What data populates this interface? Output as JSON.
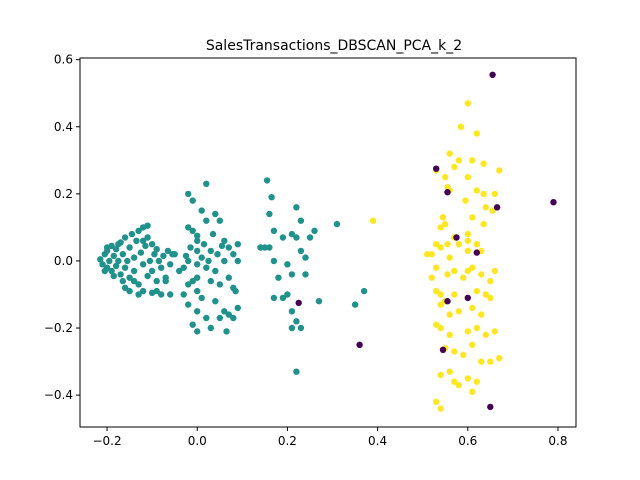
{
  "chart_data": {
    "type": "scatter",
    "title": "SalesTransactions_DBSCAN_PCA_k_2",
    "xlabel": "",
    "ylabel": "",
    "xlim": [
      -0.26,
      0.84
    ],
    "ylim": [
      -0.495,
      0.605
    ],
    "grid": false,
    "xticks": [
      -0.2,
      0.0,
      0.2,
      0.4,
      0.6,
      0.8
    ],
    "xtick_labels": [
      "−0.2",
      "0.0",
      "0.2",
      "0.4",
      "0.6",
      "0.8"
    ],
    "yticks": [
      -0.4,
      -0.2,
      0.0,
      0.2,
      0.4,
      0.6
    ],
    "ytick_labels": [
      "−0.4",
      "−0.2",
      "0.0",
      "0.2",
      "0.4",
      "0.6"
    ],
    "series": [
      {
        "color": "#21918c",
        "points": [
          [
            -0.215,
            0.005
          ],
          [
            -0.21,
            -0.01
          ],
          [
            -0.205,
            0.02
          ],
          [
            -0.2,
            0.03
          ],
          [
            -0.2,
            -0.02
          ],
          [
            -0.195,
            0.0
          ],
          [
            -0.19,
            0.045
          ],
          [
            -0.19,
            -0.03
          ],
          [
            -0.185,
            0.015
          ],
          [
            -0.18,
            -0.015
          ],
          [
            -0.18,
            0.035
          ],
          [
            -0.175,
            0.0
          ],
          [
            -0.17,
            0.055
          ],
          [
            -0.17,
            -0.04
          ],
          [
            -0.165,
            0.02
          ],
          [
            -0.16,
            -0.02
          ],
          [
            -0.16,
            0.07
          ],
          [
            -0.155,
            0.0
          ],
          [
            -0.15,
            0.04
          ],
          [
            -0.15,
            -0.05
          ],
          [
            -0.145,
            0.08
          ],
          [
            -0.14,
            0.01
          ],
          [
            -0.14,
            -0.03
          ],
          [
            -0.135,
            0.06
          ],
          [
            -0.13,
            -0.07
          ],
          [
            -0.13,
            0.09
          ],
          [
            -0.125,
            0.025
          ],
          [
            -0.12,
            -0.01
          ],
          [
            -0.12,
            0.1
          ],
          [
            -0.115,
            0.045
          ],
          [
            -0.11,
            -0.045
          ],
          [
            -0.11,
            0.07
          ],
          [
            -0.105,
            0.0
          ],
          [
            -0.1,
            0.05
          ],
          [
            -0.1,
            -0.03
          ],
          [
            -0.095,
            0.02
          ],
          [
            -0.09,
            -0.06
          ],
          [
            -0.09,
            0.035
          ],
          [
            -0.085,
            0.0
          ],
          [
            -0.08,
            -0.02
          ],
          [
            -0.075,
            0.015
          ],
          [
            -0.07,
            -0.05
          ],
          [
            -0.065,
            0.03
          ],
          [
            -0.06,
            -0.01
          ],
          [
            -0.055,
            0.02
          ],
          [
            -0.13,
            -0.1
          ],
          [
            -0.12,
            -0.09
          ],
          [
            -0.1,
            -0.095
          ],
          [
            -0.09,
            -0.09
          ],
          [
            -0.08,
            -0.1
          ],
          [
            -0.15,
            -0.09
          ],
          [
            -0.165,
            -0.06
          ],
          [
            -0.16,
            -0.08
          ],
          [
            -0.14,
            -0.06
          ],
          [
            -0.11,
            0.105
          ],
          [
            -0.12,
            0.06
          ],
          [
            -0.175,
            0.05
          ],
          [
            -0.2,
            0.04
          ],
          [
            -0.205,
            -0.03
          ],
          [
            -0.185,
            -0.045
          ],
          [
            -0.02,
            0.2
          ],
          [
            -0.01,
            0.18
          ],
          [
            0.02,
            0.23
          ],
          [
            0.01,
            0.15
          ],
          [
            0.02,
            0.12
          ],
          [
            0.04,
            0.14
          ],
          [
            0.05,
            0.12
          ],
          [
            0.035,
            0.08
          ],
          [
            0.06,
            0.06
          ],
          [
            -0.02,
            0.1
          ],
          [
            -0.01,
            0.09
          ],
          [
            0.0,
            0.075
          ],
          [
            0.0,
            0.06
          ],
          [
            0.015,
            0.05
          ],
          [
            -0.015,
            0.04
          ],
          [
            0.03,
            0.03
          ],
          [
            0.045,
            0.02
          ],
          [
            0.01,
            0.01
          ],
          [
            -0.02,
            0.0
          ],
          [
            0.0,
            -0.01
          ],
          [
            0.02,
            -0.02
          ],
          [
            0.04,
            -0.03
          ],
          [
            0.06,
            0.0
          ],
          [
            0.07,
            0.04
          ],
          [
            0.09,
            0.05
          ],
          [
            0.08,
            0.02
          ],
          [
            0.07,
            -0.05
          ],
          [
            0.08,
            -0.08
          ],
          [
            0.05,
            -0.07
          ],
          [
            0.03,
            -0.06
          ],
          [
            0.0,
            -0.05
          ],
          [
            -0.01,
            -0.06
          ],
          [
            -0.02,
            -0.07
          ],
          [
            -0.03,
            -0.02
          ],
          [
            -0.04,
            -0.03
          ],
          [
            -0.05,
            0.02
          ],
          [
            0.0,
            -0.09
          ],
          [
            0.01,
            -0.11
          ],
          [
            0.04,
            -0.12
          ],
          [
            -0.02,
            -0.13
          ],
          [
            0.0,
            -0.15
          ],
          [
            0.02,
            -0.17
          ],
          [
            0.06,
            -0.15
          ],
          [
            0.07,
            -0.16
          ],
          [
            0.08,
            -0.17
          ],
          [
            0.09,
            -0.14
          ],
          [
            0.05,
            -0.17
          ],
          [
            0.0,
            -0.21
          ],
          [
            0.03,
            -0.2
          ],
          [
            -0.01,
            -0.19
          ],
          [
            0.065,
            -0.21
          ],
          [
            0.085,
            -0.09
          ],
          [
            -0.03,
            -0.1
          ],
          [
            -0.06,
            -0.1
          ],
          [
            -0.07,
            -0.06
          ],
          [
            0.0,
            0.03
          ],
          [
            -0.025,
            0.015
          ],
          [
            0.025,
            0.0
          ],
          [
            0.055,
            0.045
          ],
          [
            0.09,
            0.0
          ],
          [
            0.155,
            0.24
          ],
          [
            0.165,
            0.19
          ],
          [
            0.16,
            0.14
          ],
          [
            0.17,
            0.09
          ],
          [
            0.15,
            0.04
          ],
          [
            0.16,
            0.04
          ],
          [
            0.17,
            0.0
          ],
          [
            0.19,
            0.07
          ],
          [
            0.2,
            -0.01
          ],
          [
            0.18,
            -0.05
          ],
          [
            0.2,
            -0.1
          ],
          [
            0.19,
            -0.11
          ],
          [
            0.17,
            -0.11
          ],
          [
            0.21,
            0.08
          ],
          [
            0.22,
            0.16
          ],
          [
            0.23,
            0.12
          ],
          [
            0.22,
            0.07
          ],
          [
            0.23,
            0.03
          ],
          [
            0.24,
            0.01
          ],
          [
            0.26,
            0.09
          ],
          [
            0.25,
            0.07
          ],
          [
            0.24,
            -0.04
          ],
          [
            0.21,
            -0.04
          ],
          [
            0.21,
            -0.15
          ],
          [
            0.22,
            -0.18
          ],
          [
            0.21,
            -0.2
          ],
          [
            0.23,
            -0.2
          ],
          [
            0.22,
            -0.33
          ],
          [
            0.27,
            -0.12
          ],
          [
            0.31,
            0.11
          ],
          [
            0.35,
            -0.13
          ],
          [
            0.37,
            -0.09
          ],
          [
            0.14,
            0.04
          ]
        ]
      },
      {
        "color": "#fde725",
        "points": [
          [
            0.6,
            0.47
          ],
          [
            0.585,
            0.4
          ],
          [
            0.62,
            0.38
          ],
          [
            0.635,
            0.29
          ],
          [
            0.56,
            0.32
          ],
          [
            0.58,
            0.3
          ],
          [
            0.57,
            0.28
          ],
          [
            0.55,
            0.25
          ],
          [
            0.555,
            0.22
          ],
          [
            0.56,
            0.21
          ],
          [
            0.6,
            0.25
          ],
          [
            0.61,
            0.3
          ],
          [
            0.62,
            0.21
          ],
          [
            0.635,
            0.2
          ],
          [
            0.595,
            0.18
          ],
          [
            0.64,
            0.16
          ],
          [
            0.655,
            0.15
          ],
          [
            0.67,
            0.27
          ],
          [
            0.53,
            0.27
          ],
          [
            0.545,
            0.13
          ],
          [
            0.54,
            0.1
          ],
          [
            0.55,
            0.11
          ],
          [
            0.6,
            0.08
          ],
          [
            0.61,
            0.13
          ],
          [
            0.635,
            0.11
          ],
          [
            0.53,
            0.05
          ],
          [
            0.54,
            0.04
          ],
          [
            0.555,
            0.05
          ],
          [
            0.57,
            0.07
          ],
          [
            0.58,
            0.05
          ],
          [
            0.6,
            0.03
          ],
          [
            0.62,
            0.05
          ],
          [
            0.63,
            0.03
          ],
          [
            0.56,
            0.01
          ],
          [
            0.52,
            0.02
          ],
          [
            0.53,
            -0.02
          ],
          [
            0.555,
            -0.04
          ],
          [
            0.57,
            -0.03
          ],
          [
            0.59,
            -0.05
          ],
          [
            0.6,
            -0.03
          ],
          [
            0.61,
            -0.02
          ],
          [
            0.63,
            -0.04
          ],
          [
            0.65,
            -0.06
          ],
          [
            0.66,
            -0.03
          ],
          [
            0.54,
            -0.1
          ],
          [
            0.53,
            -0.09
          ],
          [
            0.55,
            -0.12
          ],
          [
            0.57,
            -0.1
          ],
          [
            0.6,
            -0.11
          ],
          [
            0.62,
            -0.09
          ],
          [
            0.64,
            -0.1
          ],
          [
            0.65,
            -0.11
          ],
          [
            0.53,
            -0.19
          ],
          [
            0.54,
            -0.13
          ],
          [
            0.56,
            -0.16
          ],
          [
            0.58,
            -0.15
          ],
          [
            0.61,
            -0.14
          ],
          [
            0.63,
            -0.16
          ],
          [
            0.54,
            -0.2
          ],
          [
            0.56,
            -0.22
          ],
          [
            0.6,
            -0.21
          ],
          [
            0.62,
            -0.2
          ],
          [
            0.64,
            -0.22
          ],
          [
            0.66,
            -0.21
          ],
          [
            0.55,
            -0.26
          ],
          [
            0.57,
            -0.27
          ],
          [
            0.59,
            -0.28
          ],
          [
            0.61,
            -0.25
          ],
          [
            0.63,
            -0.3
          ],
          [
            0.65,
            -0.3
          ],
          [
            0.67,
            -0.29
          ],
          [
            0.54,
            -0.34
          ],
          [
            0.56,
            -0.33
          ],
          [
            0.58,
            -0.37
          ],
          [
            0.6,
            -0.35
          ],
          [
            0.62,
            -0.36
          ],
          [
            0.53,
            -0.42
          ],
          [
            0.54,
            -0.44
          ],
          [
            0.57,
            -0.36
          ],
          [
            0.61,
            -0.39
          ],
          [
            0.39,
            0.12
          ],
          [
            0.51,
            0.02
          ],
          [
            0.52,
            -0.05
          ],
          [
            0.6,
            0.06
          ],
          [
            0.66,
            0.2
          ]
        ]
      },
      {
        "color": "#440154",
        "points": [
          [
            0.655,
            0.555
          ],
          [
            0.665,
            0.16
          ],
          [
            0.79,
            0.175
          ],
          [
            0.53,
            0.275
          ],
          [
            0.555,
            0.205
          ],
          [
            0.575,
            0.07
          ],
          [
            0.62,
            0.025
          ],
          [
            0.555,
            -0.12
          ],
          [
            0.6,
            -0.11
          ],
          [
            0.545,
            -0.265
          ],
          [
            0.65,
            -0.435
          ],
          [
            0.36,
            -0.25
          ],
          [
            0.225,
            -0.125
          ]
        ]
      }
    ]
  }
}
